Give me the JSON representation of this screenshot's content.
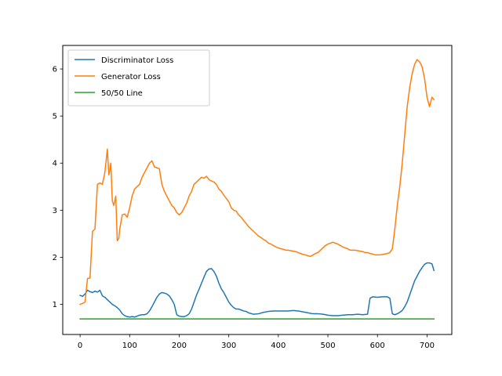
{
  "chart_data": {
    "type": "line",
    "title": "",
    "xlabel": "",
    "ylabel": "",
    "xlim": [
      -35,
      750
    ],
    "ylim": [
      0.36,
      6.5
    ],
    "xticks": [
      0,
      100,
      200,
      300,
      400,
      500,
      600,
      700
    ],
    "yticks": [
      1,
      2,
      3,
      4,
      5,
      6
    ],
    "grid": false,
    "legend_position": "upper-left",
    "series": [
      {
        "name": "Discriminator Loss",
        "color": "#1f77b4",
        "x": [
          0,
          5,
          10,
          15,
          20,
          25,
          30,
          35,
          40,
          45,
          50,
          55,
          60,
          65,
          70,
          75,
          80,
          85,
          90,
          95,
          100,
          105,
          110,
          115,
          120,
          125,
          130,
          135,
          140,
          145,
          150,
          155,
          160,
          165,
          170,
          175,
          180,
          185,
          190,
          195,
          200,
          205,
          210,
          215,
          220,
          225,
          230,
          235,
          240,
          245,
          250,
          255,
          260,
          265,
          270,
          275,
          280,
          285,
          290,
          295,
          300,
          305,
          310,
          315,
          320,
          325,
          330,
          335,
          340,
          350,
          360,
          370,
          380,
          390,
          400,
          410,
          420,
          430,
          440,
          450,
          460,
          470,
          480,
          490,
          500,
          510,
          520,
          530,
          540,
          550,
          560,
          570,
          580,
          585,
          590,
          600,
          610,
          620,
          625,
          630,
          635,
          640,
          645,
          650,
          655,
          660,
          665,
          670,
          675,
          680,
          685,
          690,
          695,
          700,
          705,
          710,
          714
        ],
        "y": [
          1.19,
          1.17,
          1.22,
          1.3,
          1.27,
          1.25,
          1.28,
          1.26,
          1.3,
          1.18,
          1.15,
          1.1,
          1.05,
          1.0,
          0.97,
          0.93,
          0.88,
          0.8,
          0.76,
          0.74,
          0.73,
          0.74,
          0.73,
          0.75,
          0.77,
          0.78,
          0.78,
          0.8,
          0.86,
          0.95,
          1.05,
          1.15,
          1.22,
          1.25,
          1.24,
          1.22,
          1.18,
          1.1,
          1.0,
          0.78,
          0.75,
          0.74,
          0.74,
          0.76,
          0.8,
          0.9,
          1.05,
          1.2,
          1.32,
          1.45,
          1.58,
          1.7,
          1.75,
          1.76,
          1.7,
          1.6,
          1.45,
          1.33,
          1.25,
          1.15,
          1.05,
          0.98,
          0.93,
          0.9,
          0.9,
          0.88,
          0.86,
          0.85,
          0.82,
          0.79,
          0.8,
          0.83,
          0.85,
          0.86,
          0.86,
          0.86,
          0.86,
          0.87,
          0.86,
          0.84,
          0.82,
          0.8,
          0.8,
          0.79,
          0.77,
          0.76,
          0.76,
          0.77,
          0.78,
          0.78,
          0.79,
          0.78,
          0.79,
          1.13,
          1.16,
          1.15,
          1.16,
          1.16,
          1.13,
          0.8,
          0.78,
          0.8,
          0.83,
          0.87,
          0.95,
          1.05,
          1.2,
          1.35,
          1.5,
          1.6,
          1.7,
          1.78,
          1.85,
          1.88,
          1.88,
          1.86,
          1.72
        ]
      },
      {
        "name": "Generator Loss",
        "color": "#ff7f0e",
        "x": [
          0,
          5,
          10,
          15,
          20,
          25,
          28,
          30,
          35,
          40,
          45,
          50,
          55,
          58,
          60,
          62,
          65,
          68,
          72,
          75,
          78,
          80,
          85,
          90,
          95,
          100,
          105,
          110,
          115,
          120,
          125,
          130,
          135,
          140,
          145,
          150,
          155,
          160,
          165,
          170,
          175,
          180,
          185,
          190,
          195,
          200,
          205,
          210,
          215,
          220,
          225,
          230,
          235,
          240,
          245,
          250,
          255,
          260,
          265,
          270,
          275,
          280,
          285,
          290,
          295,
          300,
          305,
          310,
          315,
          320,
          325,
          330,
          335,
          340,
          345,
          350,
          355,
          360,
          365,
          370,
          375,
          380,
          385,
          390,
          395,
          400,
          405,
          410,
          415,
          420,
          425,
          430,
          435,
          440,
          445,
          450,
          455,
          460,
          465,
          470,
          475,
          480,
          485,
          490,
          495,
          500,
          505,
          510,
          515,
          520,
          525,
          530,
          535,
          540,
          545,
          550,
          555,
          560,
          565,
          570,
          575,
          580,
          585,
          590,
          595,
          600,
          605,
          610,
          615,
          620,
          625,
          630,
          635,
          640,
          645,
          650,
          655,
          660,
          665,
          670,
          675,
          680,
          685,
          690,
          695,
          700,
          705,
          710,
          714
        ],
        "y": [
          1.0,
          1.02,
          1.05,
          1.55,
          1.56,
          2.55,
          2.58,
          2.6,
          3.55,
          3.58,
          3.55,
          3.8,
          4.3,
          3.75,
          3.85,
          4.0,
          3.2,
          3.1,
          3.3,
          2.35,
          2.4,
          2.6,
          2.9,
          2.92,
          2.85,
          3.05,
          3.3,
          3.45,
          3.5,
          3.55,
          3.7,
          3.8,
          3.9,
          4.0,
          4.05,
          3.92,
          3.9,
          3.88,
          3.55,
          3.4,
          3.3,
          3.2,
          3.1,
          3.05,
          2.95,
          2.9,
          2.95,
          3.05,
          3.15,
          3.3,
          3.4,
          3.55,
          3.6,
          3.65,
          3.7,
          3.68,
          3.72,
          3.65,
          3.62,
          3.6,
          3.55,
          3.45,
          3.4,
          3.32,
          3.25,
          3.18,
          3.05,
          3.0,
          2.98,
          2.9,
          2.85,
          2.78,
          2.72,
          2.65,
          2.6,
          2.55,
          2.5,
          2.45,
          2.42,
          2.38,
          2.35,
          2.3,
          2.28,
          2.25,
          2.22,
          2.2,
          2.18,
          2.17,
          2.15,
          2.15,
          2.14,
          2.13,
          2.12,
          2.1,
          2.08,
          2.06,
          2.05,
          2.03,
          2.02,
          2.05,
          2.08,
          2.1,
          2.15,
          2.2,
          2.25,
          2.28,
          2.3,
          2.32,
          2.3,
          2.28,
          2.25,
          2.22,
          2.2,
          2.18,
          2.15,
          2.15,
          2.15,
          2.14,
          2.13,
          2.12,
          2.1,
          2.1,
          2.08,
          2.07,
          2.05,
          2.05,
          2.05,
          2.06,
          2.07,
          2.08,
          2.1,
          2.18,
          2.6,
          3.1,
          3.5,
          4.0,
          4.6,
          5.2,
          5.6,
          5.9,
          6.1,
          6.2,
          6.15,
          6.05,
          5.8,
          5.4,
          5.2,
          5.4,
          5.35
        ]
      },
      {
        "name": "50/50 Line",
        "color": "#2ca02c",
        "x": [
          0,
          714
        ],
        "y": [
          0.69,
          0.69
        ]
      }
    ]
  }
}
